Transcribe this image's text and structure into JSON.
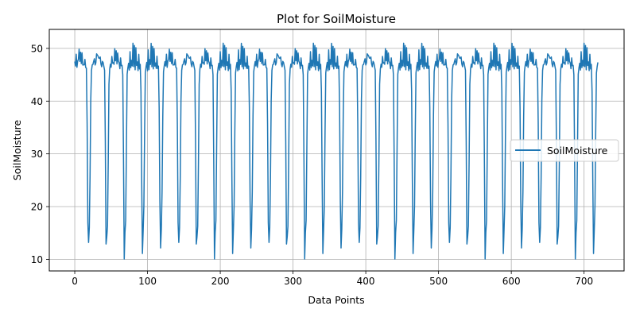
{
  "chart_data": {
    "type": "line",
    "title": "Plot for SoilMoisture",
    "xlabel": "Data Points",
    "ylabel": "SoilMoisture",
    "xlim": [
      -35,
      755
    ],
    "ylim": [
      7.8,
      53.6
    ],
    "xticks": [
      0,
      100,
      200,
      300,
      400,
      500,
      600,
      700
    ],
    "yticks": [
      10,
      20,
      30,
      40,
      50
    ],
    "grid": true,
    "legend_position": "center-right",
    "series": [
      {
        "name": "SoilMoisture",
        "color": "#1f77b4",
        "cycle_length": 24.8,
        "num_points": 720,
        "cycle_shape": [
          {
            "phase": 0.0,
            "value": 47.5
          },
          {
            "phase": 0.03,
            "value": 45.5
          },
          {
            "phase": 0.07,
            "value": 50.0
          },
          {
            "phase": 0.11,
            "value": 45.8
          },
          {
            "phase": 0.15,
            "value": 48.0
          },
          {
            "phase": 0.19,
            "value": 46.5
          },
          {
            "phase": 0.23,
            "value": 51.5
          },
          {
            "phase": 0.27,
            "value": 46.0
          },
          {
            "phase": 0.31,
            "value": 51.0
          },
          {
            "phase": 0.35,
            "value": 45.5
          },
          {
            "phase": 0.39,
            "value": 50.5
          },
          {
            "phase": 0.43,
            "value": 46.5
          },
          {
            "phase": 0.47,
            "value": 47.5
          },
          {
            "phase": 0.51,
            "value": 45.7
          },
          {
            "phase": 0.55,
            "value": 49.0
          },
          {
            "phase": 0.59,
            "value": 46.0
          },
          {
            "phase": 0.63,
            "value": 47.0
          },
          {
            "phase": 0.66,
            "value": 45.5
          },
          {
            "phase": 0.7,
            "value": 30.0
          },
          {
            "phase": 0.74,
            "value": 9.8
          },
          {
            "phase": 0.78,
            "value": 15.0
          },
          {
            "phase": 0.82,
            "value": 16.5
          },
          {
            "phase": 0.86,
            "value": 30.0
          },
          {
            "phase": 0.9,
            "value": 45.0
          },
          {
            "phase": 0.95,
            "value": 46.5
          },
          {
            "phase": 1.0,
            "value": 47.5
          }
        ]
      }
    ]
  }
}
